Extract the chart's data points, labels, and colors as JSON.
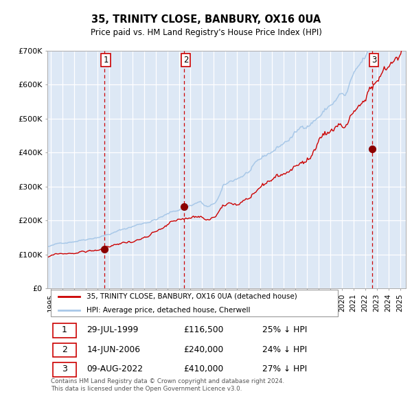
{
  "title": "35, TRINITY CLOSE, BANBURY, OX16 0UA",
  "subtitle": "Price paid vs. HM Land Registry's House Price Index (HPI)",
  "ylim": [
    0,
    700000
  ],
  "xlim_start": 1994.7,
  "xlim_end": 2025.5,
  "yticks": [
    0,
    100000,
    200000,
    300000,
    400000,
    500000,
    600000,
    700000
  ],
  "ytick_labels": [
    "£0",
    "£100K",
    "£200K",
    "£300K",
    "£400K",
    "£500K",
    "£600K",
    "£700K"
  ],
  "hpi_color": "#a8c8e8",
  "price_color": "#cc0000",
  "sale_marker_color": "#8b0000",
  "bg_shade_color": "#dde8f5",
  "grid_color": "#cccccc",
  "vline_color": "#cc0000",
  "sale1_year": 1999.57,
  "sale1_price": 116500,
  "sale2_year": 2006.45,
  "sale2_price": 240000,
  "sale3_year": 2022.6,
  "sale3_price": 410000,
  "legend_label_price": "35, TRINITY CLOSE, BANBURY, OX16 0UA (detached house)",
  "legend_label_hpi": "HPI: Average price, detached house, Cherwell",
  "table_entries": [
    {
      "num": "1",
      "date": "29-JUL-1999",
      "price": "£116,500",
      "hpi": "25% ↓ HPI"
    },
    {
      "num": "2",
      "date": "14-JUN-2006",
      "price": "£240,000",
      "hpi": "24% ↓ HPI"
    },
    {
      "num": "3",
      "date": "09-AUG-2022",
      "price": "£410,000",
      "hpi": "27% ↓ HPI"
    }
  ],
  "footer": "Contains HM Land Registry data © Crown copyright and database right 2024.\nThis data is licensed under the Open Government Licence v3.0."
}
